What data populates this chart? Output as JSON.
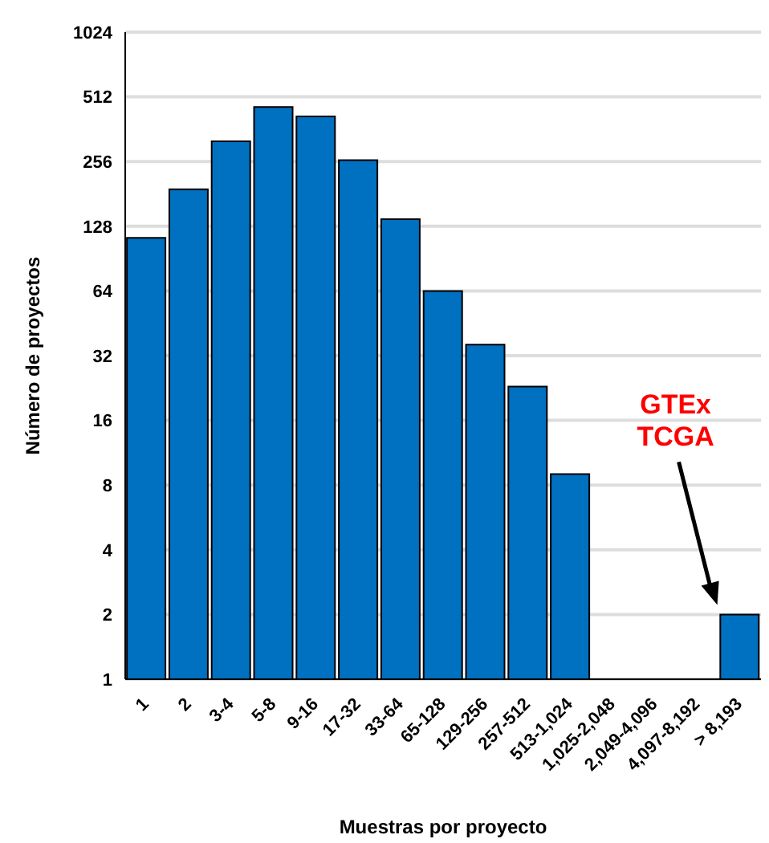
{
  "chart_data": {
    "type": "bar",
    "xlabel": "Muestras por proyecto",
    "ylabel": "Número de proyectos",
    "categories": [
      "1",
      "2",
      "3-4",
      "5-8",
      "9-16",
      "17-32",
      "33-64",
      "65-128",
      "129-256",
      "257-512",
      "513-1,024",
      "1,025-2,048",
      "2,049-4,096",
      "4,097-8,192",
      "> 8,193"
    ],
    "values": [
      113,
      190,
      318,
      459,
      415,
      260,
      138,
      64,
      36,
      23,
      9,
      null,
      null,
      null,
      2
    ],
    "color": "#0070c0",
    "log": "y",
    "ylim": [
      1,
      1024
    ],
    "yticks": [
      1,
      2,
      4,
      8,
      16,
      32,
      64,
      128,
      256,
      512,
      1024
    ],
    "grid": "y",
    "annotations": [
      "GTEx\nTCGA"
    ]
  }
}
